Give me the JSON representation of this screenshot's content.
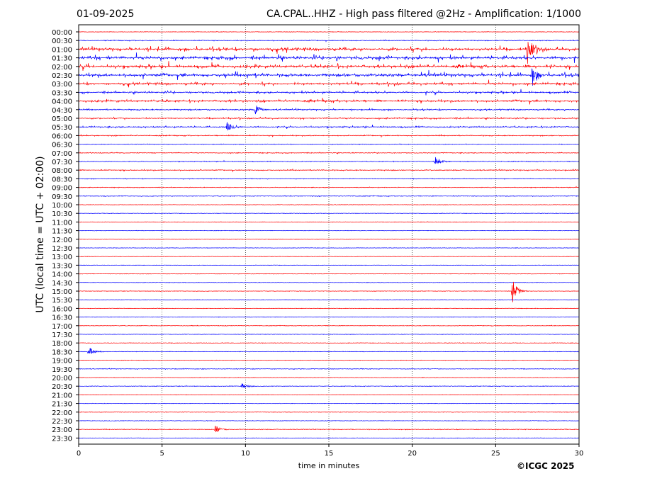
{
  "header": {
    "date": "01-09-2025",
    "station_title": "CA.CPAL..HHZ - High pass filtered @2Hz - Amplification: 1/1000"
  },
  "footer": {
    "copyright": "©ICGC 2025"
  },
  "colors": {
    "trace_red": "#ff0000",
    "trace_blue": "#0000ff",
    "grid": "#000000"
  },
  "chart_data": {
    "type": "helicorder",
    "title": "CA.CPAL..HHZ - High pass filtered @2Hz - Amplification: 1/1000",
    "xlabel": "time in minutes",
    "ylabel": "UTC (local time = UTC + 02:00)",
    "xlim": [
      0,
      30
    ],
    "x_ticks": [
      0,
      5,
      10,
      15,
      20,
      25,
      30
    ],
    "rows": [
      "00:00",
      "00:30",
      "01:00",
      "01:30",
      "02:00",
      "02:30",
      "03:00",
      "03:30",
      "04:00",
      "04:30",
      "05:00",
      "05:30",
      "06:00",
      "06:30",
      "07:00",
      "07:30",
      "08:00",
      "08:30",
      "09:00",
      "09:30",
      "10:00",
      "10:30",
      "11:00",
      "11:30",
      "12:00",
      "12:30",
      "13:00",
      "13:30",
      "14:00",
      "14:30",
      "15:00",
      "15:30",
      "16:00",
      "16:30",
      "17:00",
      "17:30",
      "18:00",
      "18:30",
      "19:00",
      "19:30",
      "20:00",
      "20:30",
      "21:00",
      "21:30",
      "22:00",
      "22:30",
      "23:00",
      "23:30"
    ],
    "row_colors": [
      "red",
      "blue",
      "red",
      "blue",
      "red",
      "blue",
      "red",
      "blue",
      "red",
      "blue",
      "red",
      "blue",
      "red",
      "blue",
      "red",
      "blue",
      "red",
      "blue",
      "red",
      "blue",
      "red",
      "blue",
      "red",
      "blue",
      "red",
      "blue",
      "red",
      "blue",
      "red",
      "blue",
      "red",
      "blue",
      "red",
      "blue",
      "red",
      "blue",
      "red",
      "blue",
      "red",
      "blue",
      "red",
      "blue",
      "red",
      "blue",
      "red",
      "blue",
      "red",
      "blue"
    ],
    "row_activity": [
      0.05,
      0.15,
      0.75,
      0.8,
      0.75,
      0.8,
      0.6,
      0.45,
      0.55,
      0.3,
      0.3,
      0.3,
      0.2,
      0.08,
      0.15,
      0.12,
      0.2,
      0.1,
      0.1,
      0.12,
      0.04,
      0.05,
      0.04,
      0.04,
      0.03,
      0.03,
      0.03,
      0.03,
      0.03,
      0.03,
      0.05,
      0.04,
      0.05,
      0.04,
      0.08,
      0.04,
      0.06,
      0.05,
      0.04,
      0.1,
      0.04,
      0.08,
      0.03,
      0.03,
      0.04,
      0.06,
      0.1,
      0.04
    ],
    "events": [
      {
        "row": "01:00",
        "minute": 26.9,
        "amplitude": 2.0
      },
      {
        "row": "02:30",
        "minute": 27.2,
        "amplitude": 1.2
      },
      {
        "row": "15:00",
        "minute": 26.0,
        "amplitude": 1.6
      },
      {
        "row": "20:30",
        "minute": 9.8,
        "amplitude": 0.4
      },
      {
        "row": "23:00",
        "minute": 8.2,
        "amplitude": 0.5
      },
      {
        "row": "18:30",
        "minute": 0.6,
        "amplitude": 0.6
      },
      {
        "row": "07:30",
        "minute": 21.4,
        "amplitude": 0.6
      },
      {
        "row": "04:30",
        "minute": 10.6,
        "amplitude": 0.7
      },
      {
        "row": "05:30",
        "minute": 8.9,
        "amplitude": 0.7
      }
    ],
    "grid": "vertical dotted lines at every 5 minutes"
  }
}
